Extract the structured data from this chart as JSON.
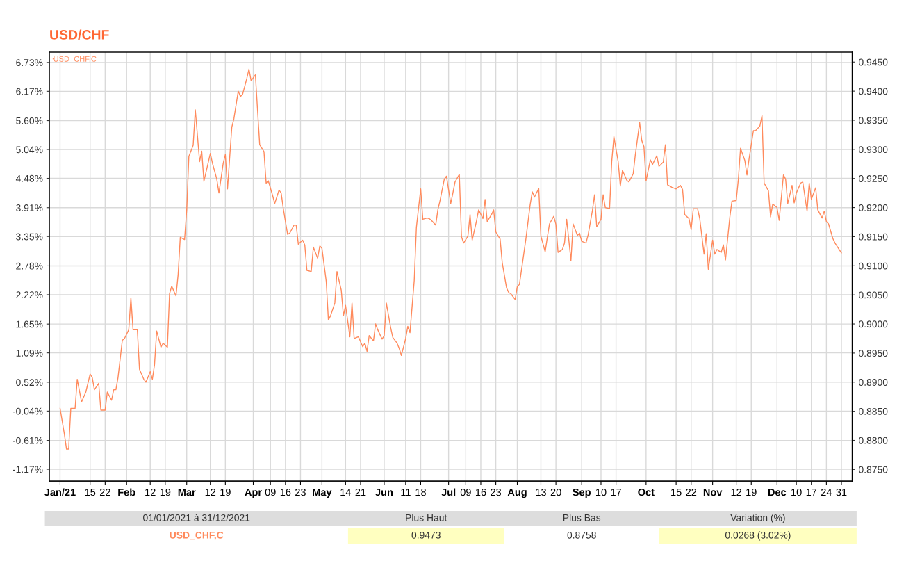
{
  "chart_data": {
    "type": "line",
    "title": "USD/CHF",
    "x": [
      "2021-01-01",
      "2021-01-03",
      "2021-01-04",
      "2021-01-05",
      "2021-01-06",
      "2021-01-08",
      "2021-01-09",
      "2021-01-11",
      "2021-01-13",
      "2021-01-15",
      "2021-01-16",
      "2021-01-17",
      "2021-01-19",
      "2021-01-20",
      "2021-01-22",
      "2021-01-23",
      "2021-01-25",
      "2021-01-26",
      "2021-01-27",
      "2021-01-28",
      "2021-01-30",
      "2021-01-31",
      "2021-02-02",
      "2021-02-03",
      "2021-02-04",
      "2021-02-06",
      "2021-02-07",
      "2021-02-09",
      "2021-02-10",
      "2021-02-12",
      "2021-02-13",
      "2021-02-14",
      "2021-02-15",
      "2021-02-17",
      "2021-02-18",
      "2021-02-20",
      "2021-02-21",
      "2021-02-22",
      "2021-02-24",
      "2021-02-25",
      "2021-02-26",
      "2021-02-28",
      "2021-03-01",
      "2021-03-02",
      "2021-03-04",
      "2021-03-05",
      "2021-03-07",
      "2021-03-08",
      "2021-03-09",
      "2021-03-12",
      "2021-03-13",
      "2021-03-15",
      "2021-03-16",
      "2021-03-18",
      "2021-03-19",
      "2021-03-20",
      "2021-03-22",
      "2021-03-23",
      "2021-03-25",
      "2021-03-26",
      "2021-03-27",
      "2021-03-29",
      "2021-03-30",
      "2021-03-31",
      "2021-04-02",
      "2021-04-03",
      "2021-04-04",
      "2021-04-06",
      "2021-04-07",
      "2021-04-08",
      "2021-04-10",
      "2021-04-11",
      "2021-04-13",
      "2021-04-14",
      "2021-04-15",
      "2021-04-17",
      "2021-04-18",
      "2021-04-20",
      "2021-04-21",
      "2021-04-22",
      "2021-04-24",
      "2021-04-25",
      "2021-04-26",
      "2021-04-28",
      "2021-04-29",
      "2021-05-01",
      "2021-05-02",
      "2021-05-03",
      "2021-05-05",
      "2021-05-06",
      "2021-05-07",
      "2021-05-09",
      "2021-05-10",
      "2021-05-12",
      "2021-05-13",
      "2021-05-14",
      "2021-05-16",
      "2021-05-17",
      "2021-05-18",
      "2021-05-20",
      "2021-05-22",
      "2021-05-23",
      "2021-05-24",
      "2021-05-25",
      "2021-05-27",
      "2021-05-28",
      "2021-05-29",
      "2021-05-31",
      "2021-06-01",
      "2021-06-02",
      "2021-06-04",
      "2021-06-05",
      "2021-06-07",
      "2021-06-08",
      "2021-06-09",
      "2021-06-11",
      "2021-06-12",
      "2021-06-13",
      "2021-06-15",
      "2021-06-16",
      "2021-06-18",
      "2021-06-19",
      "2021-06-21",
      "2021-06-22",
      "2021-06-23",
      "2021-06-25",
      "2021-06-26",
      "2021-06-27",
      "2021-06-29",
      "2021-06-30",
      "2021-07-02",
      "2021-07-03",
      "2021-07-04",
      "2021-07-06",
      "2021-07-07",
      "2021-07-08",
      "2021-07-10",
      "2021-07-11",
      "2021-07-12",
      "2021-07-14",
      "2021-07-15",
      "2021-07-17",
      "2021-07-18",
      "2021-07-19",
      "2021-07-21",
      "2021-07-22",
      "2021-07-23",
      "2021-07-25",
      "2021-07-26",
      "2021-07-28",
      "2021-07-29",
      "2021-07-30",
      "2021-08-01",
      "2021-08-02",
      "2021-08-03",
      "2021-08-06",
      "2021-08-08",
      "2021-08-09",
      "2021-08-10",
      "2021-08-12",
      "2021-08-13",
      "2021-08-15",
      "2021-08-16",
      "2021-08-17",
      "2021-08-19",
      "2021-08-20",
      "2021-08-21",
      "2021-08-23",
      "2021-08-24",
      "2021-08-25",
      "2021-08-27",
      "2021-08-28",
      "2021-08-30",
      "2021-08-31",
      "2021-09-01",
      "2021-09-03",
      "2021-09-04",
      "2021-09-06",
      "2021-09-07",
      "2021-09-08",
      "2021-09-10",
      "2021-09-11",
      "2021-09-12",
      "2021-09-14",
      "2021-09-15",
      "2021-09-16",
      "2021-09-18",
      "2021-09-19",
      "2021-09-20",
      "2021-09-22",
      "2021-09-23",
      "2021-09-25",
      "2021-09-26",
      "2021-09-28",
      "2021-09-29",
      "2021-09-30",
      "2021-10-01",
      "2021-10-03",
      "2021-10-04",
      "2021-10-06",
      "2021-10-07",
      "2021-10-09",
      "2021-10-10",
      "2021-10-11",
      "2021-10-13",
      "2021-10-15",
      "2021-10-17",
      "2021-10-18",
      "2021-10-19",
      "2021-10-21",
      "2021-10-22",
      "2021-10-23",
      "2021-10-25",
      "2021-10-26",
      "2021-10-28",
      "2021-10-29",
      "2021-10-30",
      "2021-11-01",
      "2021-11-02",
      "2021-11-03",
      "2021-11-05",
      "2021-11-06",
      "2021-11-07",
      "2021-11-09",
      "2021-11-10",
      "2021-11-12",
      "2021-11-13",
      "2021-11-14",
      "2021-11-16",
      "2021-11-17",
      "2021-11-18",
      "2021-11-20",
      "2021-11-21",
      "2021-11-23",
      "2021-11-24",
      "2021-11-25",
      "2021-11-27",
      "2021-11-28",
      "2021-11-29",
      "2021-12-01",
      "2021-12-02",
      "2021-12-04",
      "2021-12-05",
      "2021-12-06",
      "2021-12-08",
      "2021-12-09",
      "2021-12-10",
      "2021-12-12",
      "2021-12-13",
      "2021-12-15",
      "2021-12-16",
      "2021-12-17",
      "2021-12-19",
      "2021-12-20",
      "2021-12-22",
      "2021-12-23",
      "2021-12-24",
      "2021-12-25",
      "2021-12-27",
      "2021-12-28",
      "2021-12-31"
    ],
    "series": [
      {
        "name": "USD_CHF,C",
        "color": "#ff8a5c",
        "axis": "y2",
        "values": [
          0.8855,
          0.8811,
          0.8785,
          0.8785,
          0.8855,
          0.8855,
          0.8905,
          0.8866,
          0.8883,
          0.8914,
          0.8908,
          0.8887,
          0.8898,
          0.8852,
          0.8852,
          0.8883,
          0.8869,
          0.8887,
          0.8887,
          0.8908,
          0.8972,
          0.8975,
          0.899,
          0.9045,
          0.899,
          0.899,
          0.8922,
          0.8905,
          0.89,
          0.8918,
          0.8905,
          0.893,
          0.8988,
          0.896,
          0.8967,
          0.896,
          0.9052,
          0.9065,
          0.9048,
          0.9085,
          0.9149,
          0.9145,
          0.9196,
          0.9288,
          0.9307,
          0.9368,
          0.9279,
          0.9297,
          0.9245,
          0.9293,
          0.9276,
          0.9249,
          0.9225,
          0.9276,
          0.9291,
          0.9232,
          0.9338,
          0.9353,
          0.94,
          0.9391,
          0.9394,
          0.9422,
          0.9438,
          0.9418,
          0.9428,
          0.9367,
          0.9308,
          0.9296,
          0.9242,
          0.9246,
          0.9221,
          0.9207,
          0.923,
          0.9225,
          0.9198,
          0.9154,
          0.9156,
          0.917,
          0.917,
          0.9137,
          0.9144,
          0.9136,
          0.9092,
          0.909,
          0.9132,
          0.9113,
          0.9134,
          0.913,
          0.9073,
          0.9007,
          0.9014,
          0.9036,
          0.909,
          0.9058,
          0.9014,
          0.9032,
          0.8978,
          0.9036,
          0.8975,
          0.8978,
          0.8961,
          0.8967,
          0.8953,
          0.898,
          0.8971,
          0.9,
          0.899,
          0.8974,
          0.898,
          0.9036,
          0.8994,
          0.8977,
          0.8967,
          0.8958,
          0.8946,
          0.8975,
          0.8996,
          0.8985,
          0.9075,
          0.9166,
          0.9232,
          0.918,
          0.9182,
          0.9181,
          0.9178,
          0.917,
          0.9196,
          0.9212,
          0.9249,
          0.9254,
          0.9207,
          0.9225,
          0.9244,
          0.9257,
          0.915,
          0.9139,
          0.9151,
          0.9188,
          0.9144,
          0.9177,
          0.9196,
          0.9181,
          0.9214,
          0.9176,
          0.9188,
          0.9196,
          0.9158,
          0.9146,
          0.9105,
          0.9062,
          0.9054,
          0.9052,
          0.9042,
          0.9064,
          0.9068,
          0.9146,
          0.9205,
          0.9227,
          0.9218,
          0.9233,
          0.9151,
          0.9124,
          0.9149,
          0.9172,
          0.9185,
          0.9171,
          0.9123,
          0.9128,
          0.9139,
          0.918,
          0.9109,
          0.9172,
          0.9152,
          0.9156,
          0.9142,
          0.9139,
          0.9153,
          0.9195,
          0.9222,
          0.9167,
          0.918,
          0.9222,
          0.92,
          0.9198,
          0.9279,
          0.9322,
          0.9279,
          0.9237,
          0.9264,
          0.9247,
          0.9244,
          0.9258,
          0.9291,
          0.9346,
          0.9315,
          0.9305,
          0.9246,
          0.9282,
          0.9274,
          0.9289,
          0.9271,
          0.9278,
          0.9308,
          0.9239,
          0.9235,
          0.9232,
          0.9238,
          0.9231,
          0.9188,
          0.9181,
          0.9162,
          0.9198,
          0.9198,
          0.9181,
          0.912,
          0.9155,
          0.9094,
          0.9144,
          0.912,
          0.9128,
          0.9123,
          0.9136,
          0.911,
          0.9183,
          0.9211,
          0.9212,
          0.9249,
          0.9302,
          0.9281,
          0.9256,
          0.9284,
          0.9332,
          0.9332,
          0.934,
          0.9358,
          0.9242,
          0.9229,
          0.9184,
          0.9206,
          0.92,
          0.9178,
          0.9256,
          0.9249,
          0.9207,
          0.9238,
          0.9208,
          0.9225,
          0.9242,
          0.9244,
          0.9194,
          0.9242,
          0.9214,
          0.9234,
          0.9196,
          0.9182,
          0.9194,
          0.9176,
          0.9172,
          0.9147,
          0.9139,
          0.9122
        ]
      }
    ],
    "xlim": [
      "2020-12-27",
      "2022-01-05"
    ],
    "xticks": [
      {
        "value": "2021-01-01",
        "label": "Jan/21"
      },
      {
        "value": "2021-01-15",
        "label": "15"
      },
      {
        "value": "2021-01-22",
        "label": "22"
      },
      {
        "value": "2021-02-01",
        "label": "Feb"
      },
      {
        "value": "2021-02-12",
        "label": "12"
      },
      {
        "value": "2021-02-19",
        "label": "19"
      },
      {
        "value": "2021-03-01",
        "label": "Mar"
      },
      {
        "value": "2021-03-12",
        "label": "12"
      },
      {
        "value": "2021-03-19",
        "label": "19"
      },
      {
        "value": "2021-04-01",
        "label": "Apr"
      },
      {
        "value": "2021-04-09",
        "label": "09"
      },
      {
        "value": "2021-04-16",
        "label": "16"
      },
      {
        "value": "2021-04-23",
        "label": "23"
      },
      {
        "value": "2021-05-03",
        "label": "May"
      },
      {
        "value": "2021-05-14",
        "label": "14"
      },
      {
        "value": "2021-05-21",
        "label": "21"
      },
      {
        "value": "2021-06-01",
        "label": "Jun"
      },
      {
        "value": "2021-06-11",
        "label": "11"
      },
      {
        "value": "2021-06-18",
        "label": "18"
      },
      {
        "value": "2021-07-01",
        "label": "Jul"
      },
      {
        "value": "2021-07-09",
        "label": "09"
      },
      {
        "value": "2021-07-16",
        "label": "16"
      },
      {
        "value": "2021-07-23",
        "label": "23"
      },
      {
        "value": "2021-08-02",
        "label": "Aug"
      },
      {
        "value": "2021-08-13",
        "label": "13"
      },
      {
        "value": "2021-08-20",
        "label": "20"
      },
      {
        "value": "2021-09-01",
        "label": "Sep"
      },
      {
        "value": "2021-09-10",
        "label": "10"
      },
      {
        "value": "2021-09-17",
        "label": "17"
      },
      {
        "value": "2021-10-01",
        "label": "Oct"
      },
      {
        "value": "2021-10-15",
        "label": "15"
      },
      {
        "value": "2021-10-22",
        "label": "22"
      },
      {
        "value": "2021-11-01",
        "label": "Nov"
      },
      {
        "value": "2021-11-12",
        "label": "12"
      },
      {
        "value": "2021-11-19",
        "label": "19"
      },
      {
        "value": "2021-12-01",
        "label": "Dec"
      },
      {
        "value": "2021-12-10",
        "label": "10"
      },
      {
        "value": "2021-12-17",
        "label": "17"
      },
      {
        "value": "2021-12-24",
        "label": "24"
      },
      {
        "value": "2021-12-31",
        "label": "31"
      }
    ],
    "ylim": [
      -1.4,
      6.93
    ],
    "yticks": [
      {
        "value": -1.17,
        "label": "-1.17%"
      },
      {
        "value": -0.61,
        "label": "-0.61%"
      },
      {
        "value": -0.04,
        "label": "-0.04%"
      },
      {
        "value": 0.52,
        "label": "0.52%"
      },
      {
        "value": 1.09,
        "label": "1.09%"
      },
      {
        "value": 1.65,
        "label": "1.65%"
      },
      {
        "value": 2.22,
        "label": "2.22%"
      },
      {
        "value": 2.78,
        "label": "2.78%"
      },
      {
        "value": 3.35,
        "label": "3.35%"
      },
      {
        "value": 3.91,
        "label": "3.91%"
      },
      {
        "value": 4.48,
        "label": "4.48%"
      },
      {
        "value": 5.04,
        "label": "5.04%"
      },
      {
        "value": 5.6,
        "label": "5.60%"
      },
      {
        "value": 6.17,
        "label": "6.17%"
      },
      {
        "value": 6.73,
        "label": "6.73%"
      }
    ],
    "y2lim": [
      0.873,
      0.9467
    ],
    "y2ticks": [
      {
        "value": 0.875,
        "label": "0.8750"
      },
      {
        "value": 0.88,
        "label": "0.8800"
      },
      {
        "value": 0.885,
        "label": "0.8850"
      },
      {
        "value": 0.89,
        "label": "0.8900"
      },
      {
        "value": 0.895,
        "label": "0.8950"
      },
      {
        "value": 0.9,
        "label": "0.9000"
      },
      {
        "value": 0.905,
        "label": "0.9050"
      },
      {
        "value": 0.91,
        "label": "0.9100"
      },
      {
        "value": 0.915,
        "label": "0.9150"
      },
      {
        "value": 0.92,
        "label": "0.9200"
      },
      {
        "value": 0.925,
        "label": "0.9250"
      },
      {
        "value": 0.93,
        "label": "0.9300"
      },
      {
        "value": 0.935,
        "label": "0.9350"
      },
      {
        "value": 0.94,
        "label": "0.9400"
      },
      {
        "value": 0.945,
        "label": "0.9450"
      }
    ],
    "grid": true,
    "legend": "top left",
    "marker": "none",
    "line_style": "solid",
    "annotations": [
      "01/01/2021 à 31/12/2021",
      "Plus Haut",
      "Plus Bas",
      "Variation (%)",
      "USD_CHF,C",
      "0.9473",
      "0.8758",
      "0.0268 (3.02%)"
    ]
  }
}
